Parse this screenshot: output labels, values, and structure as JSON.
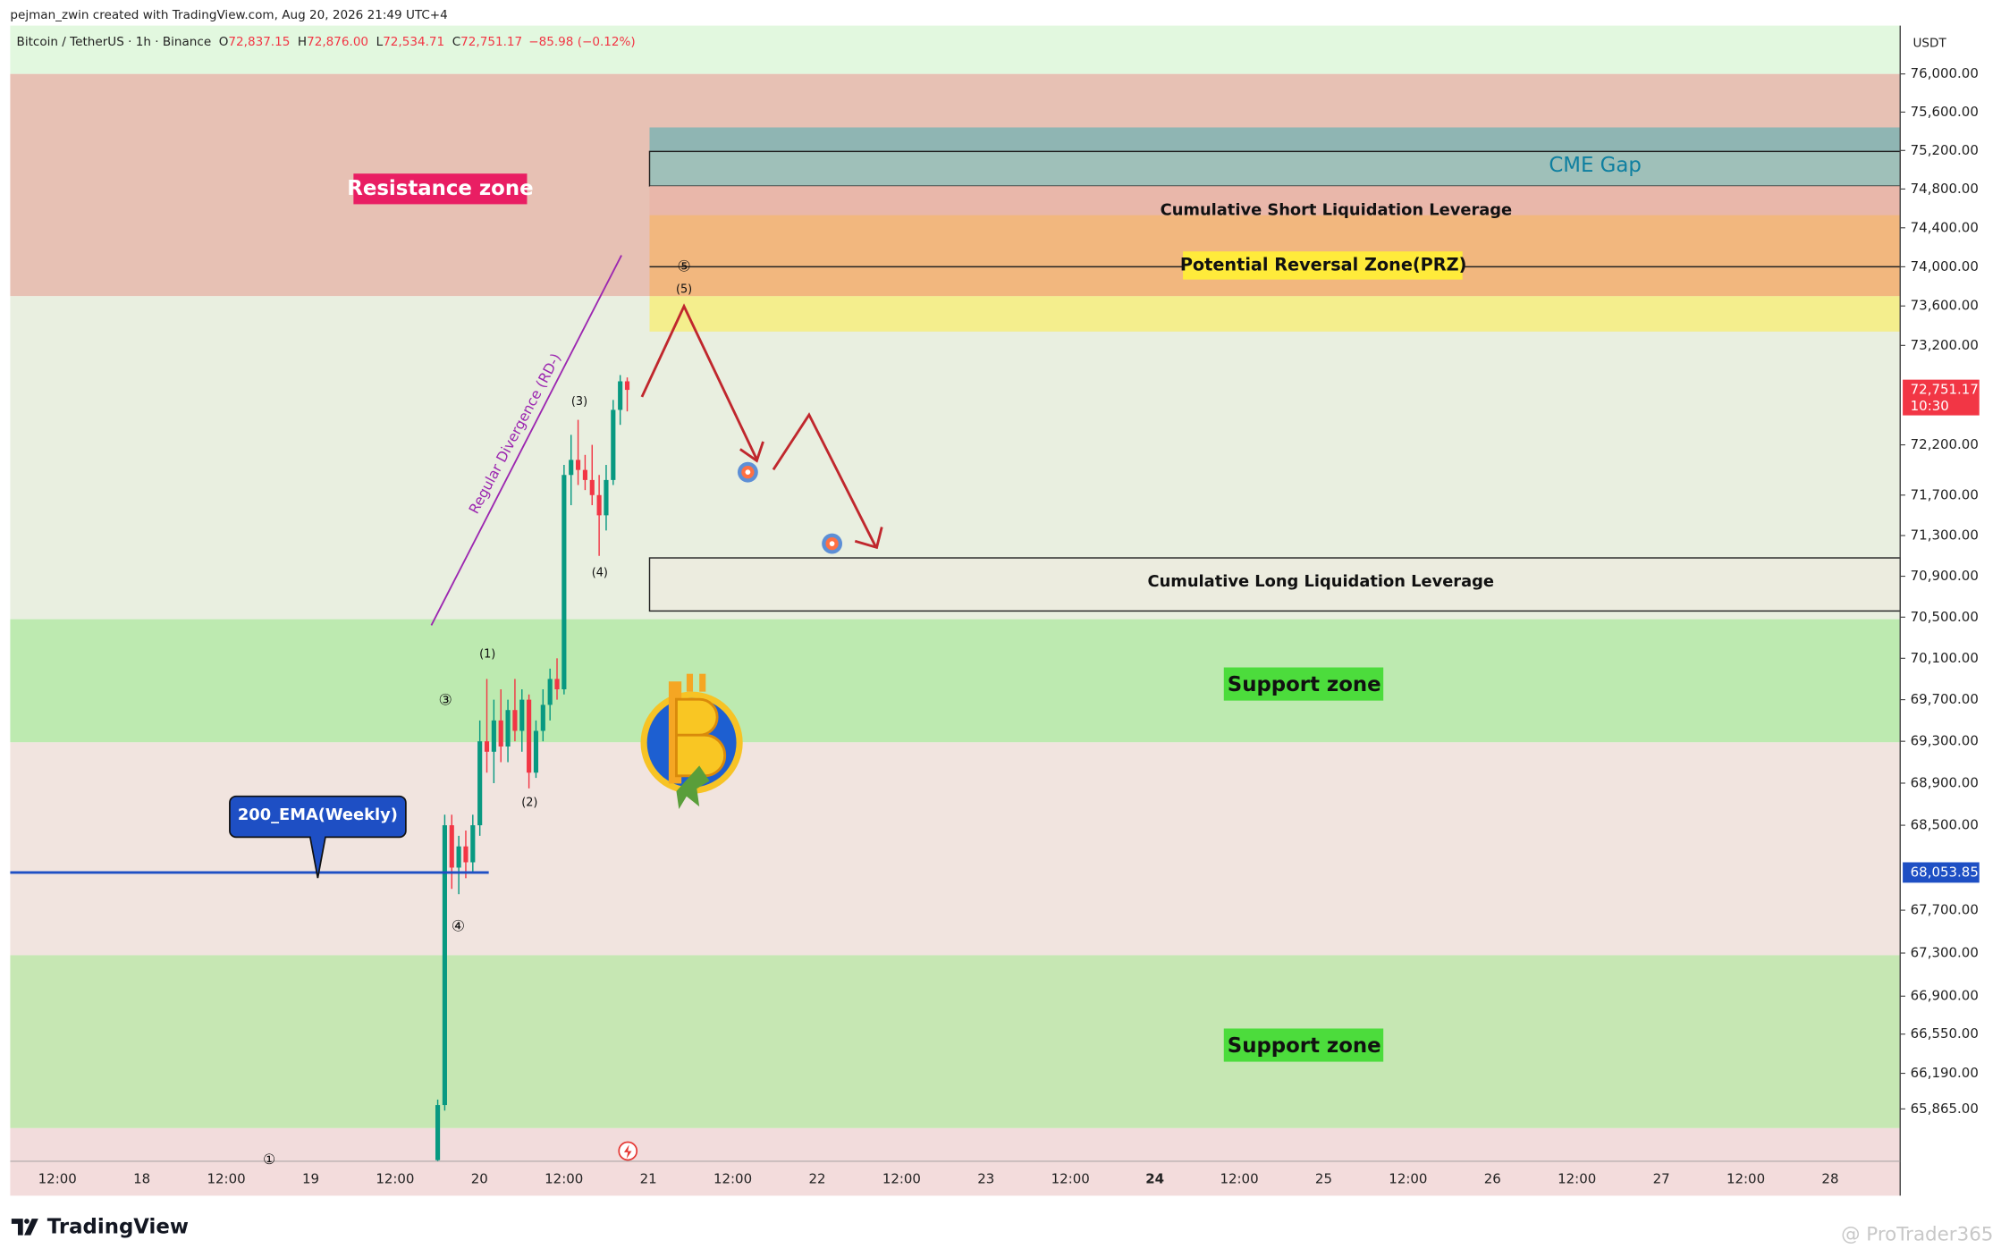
{
  "chart_data": {
    "type": "candlestick",
    "header": "pejman_zwin created with TradingView.com, Aug 20, 2026 21:49 UTC+4",
    "symbol": "Bitcoin / TetherUS · 1h · Binance",
    "ohlc": [
      {
        "key": "O",
        "value": "72,837.15"
      },
      {
        "key": "H",
        "value": "72,876.00"
      },
      {
        "key": "L",
        "value": "72,534.71"
      },
      {
        "key": "C",
        "value": "72,751.17"
      }
    ],
    "change": "−85.98 (−0.12%)",
    "currency": "USDT",
    "log_scale": true,
    "ylim": [
      65390,
      76510
    ],
    "yticks": [
      {
        "value": 76000,
        "label": "76,000.00"
      },
      {
        "value": 75600,
        "label": "75,600.00"
      },
      {
        "value": 75200,
        "label": "75,200.00"
      },
      {
        "value": 74800,
        "label": "74,800.00"
      },
      {
        "value": 74400,
        "label": "74,400.00"
      },
      {
        "value": 74000,
        "label": "74,000.00"
      },
      {
        "value": 73600,
        "label": "73,600.00"
      },
      {
        "value": 73200,
        "label": "73,200.00"
      },
      {
        "value": 72200,
        "label": "72,200.00"
      },
      {
        "value": 71700,
        "label": "71,700.00"
      },
      {
        "value": 71300,
        "label": "71,300.00"
      },
      {
        "value": 70900,
        "label": "70,900.00"
      },
      {
        "value": 70500,
        "label": "70,500.00"
      },
      {
        "value": 70100,
        "label": "70,100.00"
      },
      {
        "value": 69700,
        "label": "69,700.00"
      },
      {
        "value": 69300,
        "label": "69,300.00"
      },
      {
        "value": 68900,
        "label": "68,900.00"
      },
      {
        "value": 68500,
        "label": "68,500.00"
      },
      {
        "value": 67700,
        "label": "67,700.00"
      },
      {
        "value": 67300,
        "label": "67,300.00"
      },
      {
        "value": 66900,
        "label": "66,900.00"
      },
      {
        "value": 66550,
        "label": "66,550.00"
      },
      {
        "value": 66190,
        "label": "66,190.00"
      },
      {
        "value": 65865,
        "label": "65,865.00"
      }
    ],
    "x_labels": [
      "12:00",
      "18",
      "12:00",
      "19",
      "12:00",
      "20",
      "12:00",
      "21",
      "12:00",
      "22",
      "12:00",
      "23",
      "12:00",
      "24",
      "12:00",
      "25",
      "12:00",
      "26",
      "12:00",
      "27",
      "12:00",
      "28"
    ],
    "up_color": "#089981",
    "down_color": "#f23645",
    "candles": [
      {
        "open": 65400,
        "high": 65950,
        "low": 65390,
        "close": 65900
      },
      {
        "open": 65900,
        "high": 68600,
        "low": 65850,
        "close": 68500
      },
      {
        "open": 68500,
        "high": 68600,
        "low": 67900,
        "close": 68100
      },
      {
        "open": 68100,
        "high": 68400,
        "low": 67850,
        "close": 68300
      },
      {
        "open": 68300,
        "high": 68450,
        "low": 68000,
        "close": 68150
      },
      {
        "open": 68150,
        "high": 68600,
        "low": 68050,
        "close": 68500
      },
      {
        "open": 68500,
        "high": 69500,
        "low": 68400,
        "close": 69300
      },
      {
        "open": 69300,
        "high": 69900,
        "low": 69000,
        "close": 69200
      },
      {
        "open": 69200,
        "high": 69700,
        "low": 68900,
        "close": 69500
      },
      {
        "open": 69500,
        "high": 69800,
        "low": 69100,
        "close": 69250
      },
      {
        "open": 69250,
        "high": 69700,
        "low": 69100,
        "close": 69600
      },
      {
        "open": 69600,
        "high": 69900,
        "low": 69300,
        "close": 69400
      },
      {
        "open": 69400,
        "high": 69800,
        "low": 69200,
        "close": 69700
      },
      {
        "open": 69700,
        "high": 69750,
        "low": 68850,
        "close": 69000
      },
      {
        "open": 69000,
        "high": 69500,
        "low": 68950,
        "close": 69400
      },
      {
        "open": 69400,
        "high": 69800,
        "low": 69300,
        "close": 69650
      },
      {
        "open": 69650,
        "high": 70000,
        "low": 69500,
        "close": 69900
      },
      {
        "open": 69900,
        "high": 70100,
        "low": 69700,
        "close": 69800
      },
      {
        "open": 69800,
        "high": 72000,
        "low": 69750,
        "close": 71900
      },
      {
        "open": 71900,
        "high": 72300,
        "low": 71600,
        "close": 72050
      },
      {
        "open": 72050,
        "high": 72450,
        "low": 71800,
        "close": 71950
      },
      {
        "open": 71950,
        "high": 72100,
        "low": 71750,
        "close": 71850
      },
      {
        "open": 71850,
        "high": 72200,
        "low": 71600,
        "close": 71700
      },
      {
        "open": 71700,
        "high": 71900,
        "low": 71100,
        "close": 71500
      },
      {
        "open": 71500,
        "high": 72000,
        "low": 71350,
        "close": 71850
      },
      {
        "open": 71850,
        "high": 72650,
        "low": 71800,
        "close": 72550
      },
      {
        "open": 72550,
        "high": 72900,
        "low": 72400,
        "close": 72837.15
      },
      {
        "open": 72837.15,
        "high": 72876,
        "low": 72534.71,
        "close": 72751.17
      }
    ],
    "zones": [
      {
        "low": 76000,
        "high": 76510,
        "color": "#e2f8df"
      },
      {
        "low": 73700,
        "high": 76000,
        "color": "#e7c1b4"
      },
      {
        "low": 70480,
        "high": 73700,
        "color": "#e9efe0"
      },
      {
        "low": 69290,
        "high": 70480,
        "color": "#bdeab0"
      },
      {
        "low": 67280,
        "high": 69290,
        "color": "#f1e4df"
      },
      {
        "low": 65690,
        "high": 67280,
        "color": "#c6e7b3"
      },
      {
        "low": 65390,
        "high": 65690,
        "color": "#f2dcdc"
      }
    ],
    "projection_boxes": [
      {
        "low": 75190,
        "high": 75440,
        "color": "#8fb5b3"
      },
      {
        "low": 74830,
        "high": 75190,
        "color": "#9fc0b9",
        "border": "#222222"
      },
      {
        "low": 74530,
        "high": 74830,
        "color": "#e9b7aa"
      },
      {
        "low": 73700,
        "high": 74530,
        "color": "#f2b77e",
        "line": 74000
      },
      {
        "low": 73340,
        "high": 73700,
        "color": "#f4ee8d"
      },
      {
        "low": 70560,
        "high": 71080,
        "color": "#ececdf",
        "border": "#222222"
      }
    ],
    "last_price": {
      "value": 72751.17,
      "label": "72,751.17",
      "countdown": "10:30",
      "color": "#f23645"
    },
    "ema": {
      "name": "200_EMA(Weekly)",
      "value": 68053.85,
      "label": "68,053.85",
      "color": "#1e4fc4"
    },
    "annotations": [
      "Resistance zone",
      "CME Gap",
      "Cumulative Short Liquidation Leverage",
      "Potential Reversal Zone(PRZ)",
      "Cumulative Long Liquidation Leverage",
      "Support zone",
      "Support zone",
      "Regular Divergence (RD-)",
      "(1)",
      "(2)",
      "(3)",
      "(4)",
      "(5)",
      "③",
      "④",
      "⑤",
      "①"
    ],
    "brand": "TradingView",
    "watermark": "@ ProTrader365"
  }
}
